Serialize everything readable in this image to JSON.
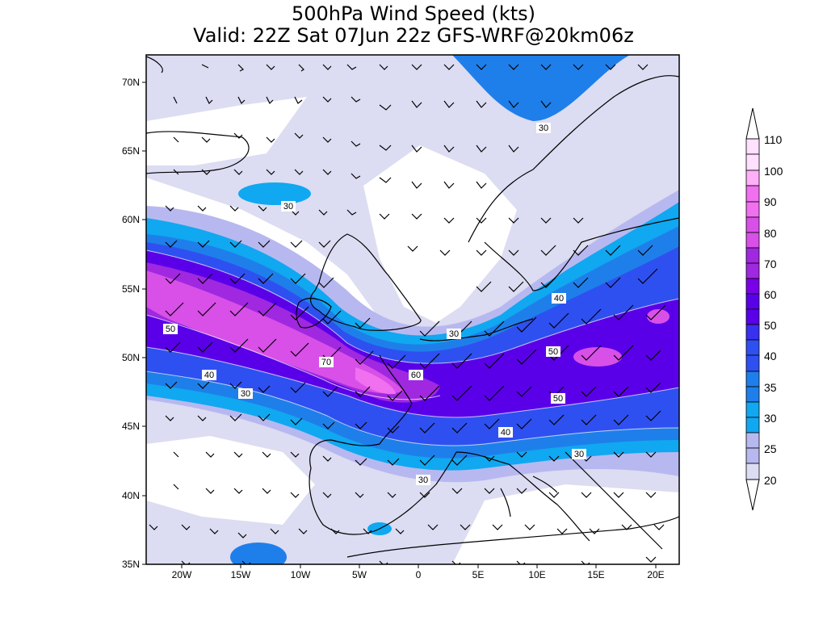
{
  "title_line1": "500hPa Wind Speed (kts)",
  "title_line2": "Valid: 22Z Sat 07Jun 22z GFS-WRF@20km06z",
  "lon_ticks": [
    "20W",
    "15W",
    "10W",
    "5W",
    "0",
    "5E",
    "10E",
    "15E",
    "20E"
  ],
  "lat_ticks": [
    "70N",
    "65N",
    "60N",
    "55N",
    "50N",
    "45N",
    "40N",
    "35N"
  ],
  "colorbar": {
    "labels": [
      "110",
      "100",
      "90",
      "80",
      "70",
      "60",
      "50",
      "40",
      "35",
      "30",
      "25",
      "20"
    ],
    "colors": [
      "#ffffff",
      "#ffe0ff",
      "#ffb0f8",
      "#f070f0",
      "#d850e8",
      "#a028e0",
      "#5a00e8",
      "#2f50f0",
      "#1f7fea",
      "#10a8f0",
      "#b8b8f0",
      "#dcdcf2"
    ]
  },
  "contour_labels": [
    {
      "id": "c30a",
      "text": "30"
    },
    {
      "id": "c30b",
      "text": "30"
    },
    {
      "id": "c50a",
      "text": "50"
    },
    {
      "id": "c40a",
      "text": "40"
    },
    {
      "id": "c30c",
      "text": "30"
    },
    {
      "id": "c70",
      "text": "70"
    },
    {
      "id": "c60",
      "text": "60"
    },
    {
      "id": "c30d",
      "text": "30"
    },
    {
      "id": "c40b",
      "text": "40"
    },
    {
      "id": "c50b",
      "text": "50"
    },
    {
      "id": "c50c",
      "text": "50"
    },
    {
      "id": "c40c",
      "text": "40"
    },
    {
      "id": "c30e",
      "text": "30"
    },
    {
      "id": "c30f",
      "text": "30"
    }
  ],
  "map": {
    "fill_colors": {
      "c20": "#dcdcf2",
      "c25": "#b8b8f0",
      "c30": "#10a8f0",
      "c35": "#1f7fea",
      "c40": "#2f50f0",
      "c50": "#5a00e8",
      "c60": "#a028e0",
      "c70": "#d850e8",
      "c80": "#f070f0"
    }
  }
}
